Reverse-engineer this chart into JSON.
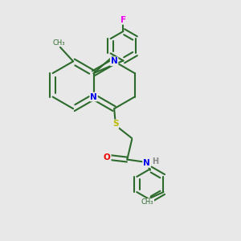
{
  "background_color": "#e8e8e8",
  "bond_color": "#2d6b2d",
  "atom_colors": {
    "N": "#0000ee",
    "S": "#bbbb00",
    "O": "#ee0000",
    "F": "#ee00ee",
    "H": "#888888",
    "C": "#2d6b2d"
  },
  "figsize": [
    3.0,
    3.0
  ],
  "dpi": 100
}
